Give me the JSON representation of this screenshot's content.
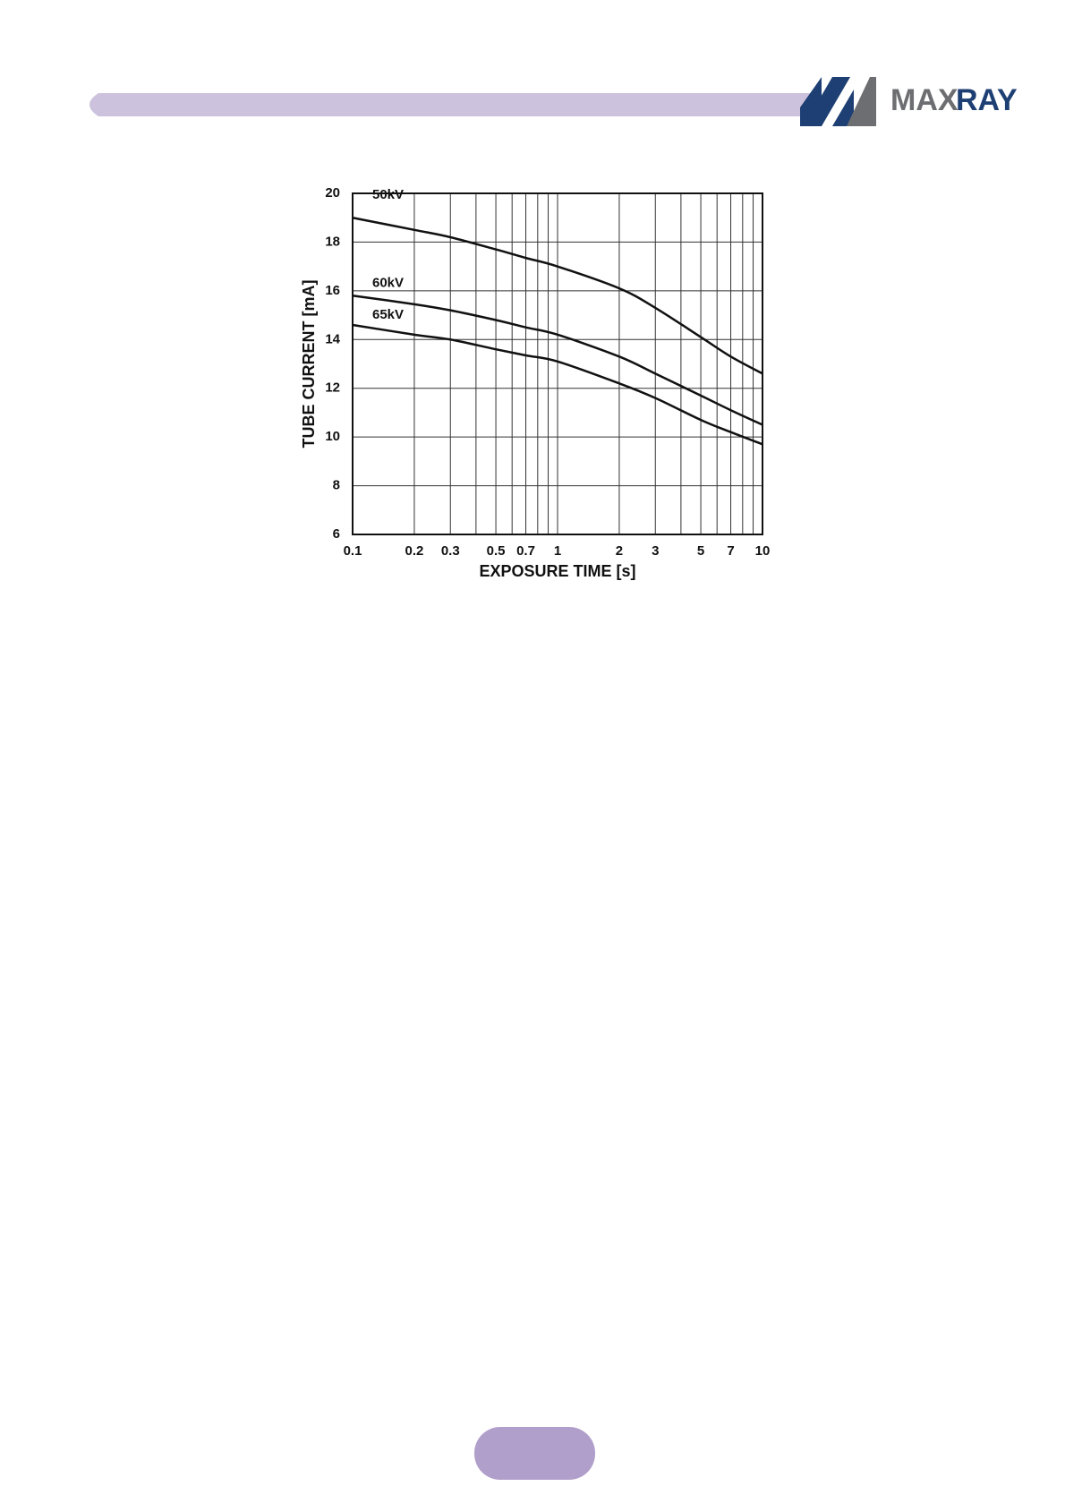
{
  "header": {
    "logo": {
      "text_gray": "MAX",
      "text_blue": "RAY"
    }
  },
  "chart_data": {
    "type": "line",
    "x_label": "EXPOSURE TIME [s]",
    "y_label": "TUBE CURRENT [mA]",
    "x": [
      0.1,
      0.2,
      0.3,
      0.5,
      0.7,
      1,
      2,
      3,
      5,
      7,
      10
    ],
    "series": [
      {
        "name": "50kV",
        "color": "#111111",
        "values": [
          19.0,
          18.5,
          18.2,
          17.7,
          17.35,
          17.0,
          16.1,
          15.3,
          14.1,
          13.3,
          12.6
        ]
      },
      {
        "name": "60kV",
        "color": "#111111",
        "values": [
          15.8,
          15.45,
          15.2,
          14.8,
          14.5,
          14.2,
          13.3,
          12.6,
          11.7,
          11.1,
          10.5
        ]
      },
      {
        "name": "65kV",
        "color": "#111111",
        "values": [
          14.6,
          14.2,
          14.0,
          13.6,
          13.35,
          13.1,
          12.2,
          11.6,
          10.7,
          10.2,
          9.7
        ]
      }
    ],
    "xlim": [
      0.1,
      10
    ],
    "xticks": [
      0.1,
      0.2,
      0.3,
      0.5,
      0.7,
      1,
      2,
      3,
      5,
      7,
      10
    ],
    "x_minor_grid": [
      0.4,
      0.6,
      0.8,
      0.9,
      4,
      6,
      8,
      9
    ],
    "x_log": true,
    "ylim": [
      6,
      20
    ],
    "yticks": [
      6,
      8,
      10,
      12,
      14,
      16,
      18,
      20
    ],
    "grid": true
  }
}
